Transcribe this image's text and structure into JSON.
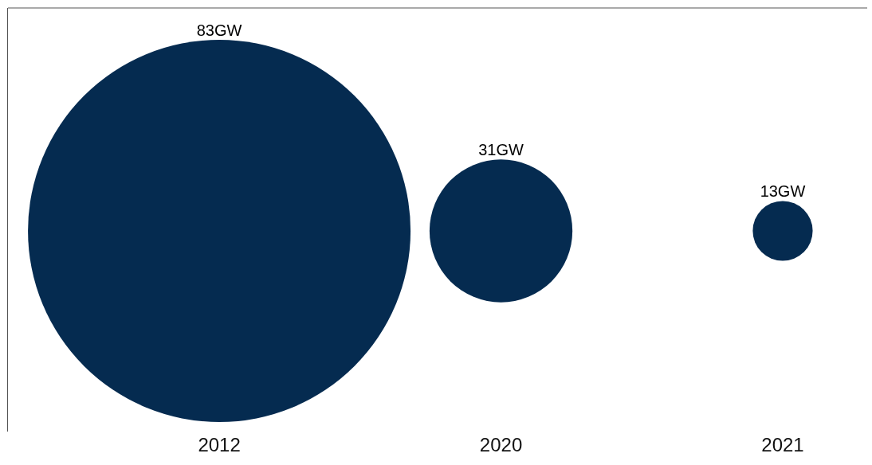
{
  "chart_data": {
    "type": "other",
    "categories": [
      "2012",
      "2020",
      "2021"
    ],
    "values": [
      83,
      31,
      13
    ],
    "value_labels": [
      "83GW",
      "31GW",
      "13GW"
    ],
    "color": "#052b50"
  }
}
